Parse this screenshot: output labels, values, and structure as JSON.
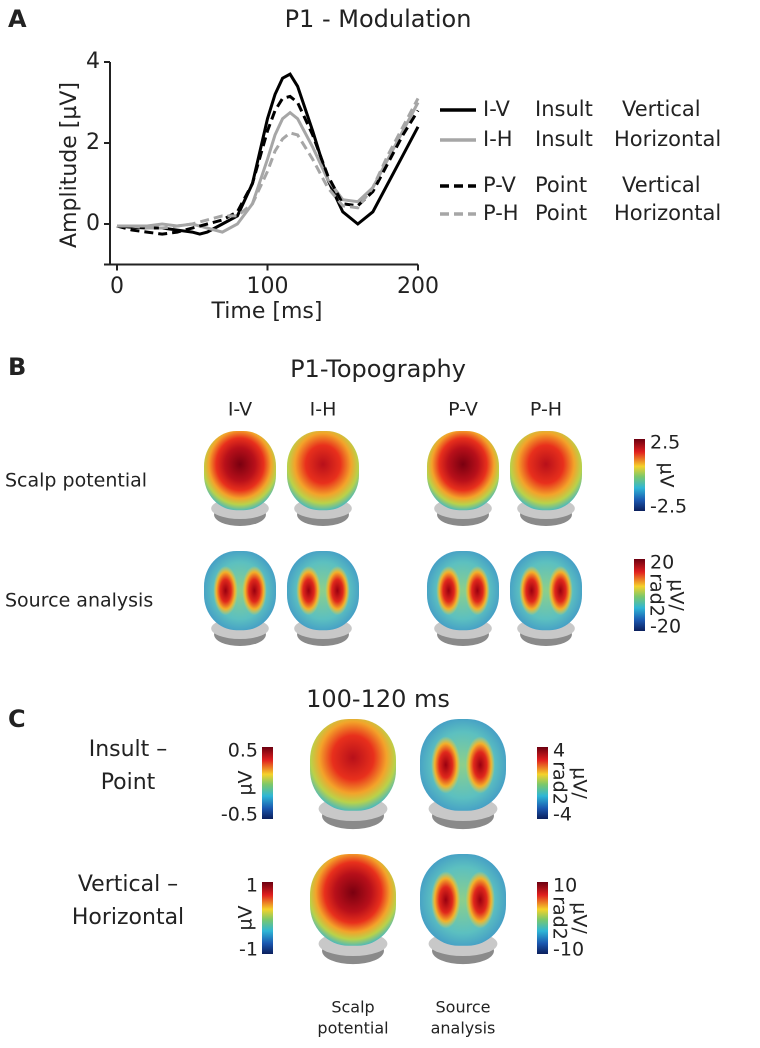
{
  "panel_labels": [
    "A",
    "B",
    "C"
  ],
  "chart_data": {
    "type": "line",
    "title": "P1 - Modulation",
    "x_label": "Time [ms]",
    "y_label": "Amplitude [µV]",
    "x": [
      0,
      10,
      20,
      30,
      40,
      50,
      55,
      60,
      70,
      80,
      90,
      100,
      105,
      110,
      115,
      120,
      130,
      140,
      150,
      160,
      170,
      180,
      190,
      200
    ],
    "xlim": [
      0,
      200
    ],
    "xticks": [
      0,
      100,
      200
    ],
    "ylim": [
      -1,
      4
    ],
    "yticks": [
      0,
      2,
      4
    ],
    "series": [
      {
        "name": "I-V",
        "condition": "Insult",
        "orientation": "Vertical",
        "color": "#000000",
        "dashed": false,
        "values": [
          -0.05,
          -0.08,
          -0.1,
          -0.1,
          -0.15,
          -0.2,
          -0.25,
          -0.2,
          0.0,
          0.2,
          1.0,
          2.6,
          3.2,
          3.6,
          3.7,
          3.4,
          2.3,
          1.1,
          0.3,
          0.0,
          0.3,
          1.0,
          1.7,
          2.4
        ]
      },
      {
        "name": "I-H",
        "condition": "Insult",
        "orientation": "Horizontal",
        "color": "#a6a6a6",
        "dashed": false,
        "values": [
          -0.05,
          -0.05,
          -0.05,
          0.0,
          -0.05,
          0.0,
          -0.05,
          -0.1,
          -0.2,
          0.0,
          0.5,
          1.6,
          2.2,
          2.6,
          2.75,
          2.6,
          1.9,
          1.1,
          0.6,
          0.55,
          0.9,
          1.6,
          2.3,
          3.0
        ]
      },
      {
        "name": "P-V",
        "condition": "Point",
        "orientation": "Vertical",
        "color": "#000000",
        "dashed": true,
        "values": [
          -0.05,
          -0.15,
          -0.2,
          -0.25,
          -0.2,
          -0.1,
          -0.05,
          0.0,
          0.1,
          0.3,
          1.0,
          2.3,
          2.8,
          3.1,
          3.15,
          3.0,
          2.2,
          1.2,
          0.5,
          0.45,
          0.8,
          1.5,
          2.2,
          2.8
        ]
      },
      {
        "name": "P-H",
        "condition": "Point",
        "orientation": "Horizontal",
        "color": "#a6a6a6",
        "dashed": true,
        "values": [
          -0.05,
          -0.05,
          -0.1,
          -0.1,
          -0.05,
          0.0,
          0.05,
          0.1,
          0.2,
          0.2,
          0.5,
          1.3,
          1.8,
          2.1,
          2.25,
          2.2,
          1.6,
          0.9,
          0.45,
          0.4,
          0.9,
          1.7,
          2.4,
          3.1
        ]
      }
    ]
  },
  "topography": {
    "title": "P1-Topography",
    "columns": [
      "I-V",
      "I-H",
      "P-V",
      "P-H"
    ],
    "rows": [
      {
        "label": "Scalp potential",
        "unit": [
          "µV"
        ],
        "max": "2.5",
        "min": "-2.5"
      },
      {
        "label": "Source analysis",
        "unit": [
          "µV/",
          "rad2"
        ],
        "max": "20",
        "min": "-20"
      }
    ]
  },
  "difference": {
    "title": "100-120 ms",
    "rows": [
      {
        "label": [
          "Insult –",
          "Point"
        ],
        "scalp": {
          "unit": [
            "µV"
          ],
          "max": "0.5",
          "min": "-0.5"
        },
        "source": {
          "unit": [
            "µV/",
            "rad2"
          ],
          "max": "4",
          "min": "-4"
        }
      },
      {
        "label": [
          "Vertical –",
          "Horizontal"
        ],
        "scalp": {
          "unit": [
            "µV"
          ],
          "max": "1",
          "min": "-1"
        },
        "source": {
          "unit": [
            "µV/",
            "rad2"
          ],
          "max": "10",
          "min": "-10"
        }
      }
    ],
    "captions": [
      [
        "Scalp",
        "potential"
      ],
      [
        "Source",
        "analysis"
      ]
    ]
  }
}
